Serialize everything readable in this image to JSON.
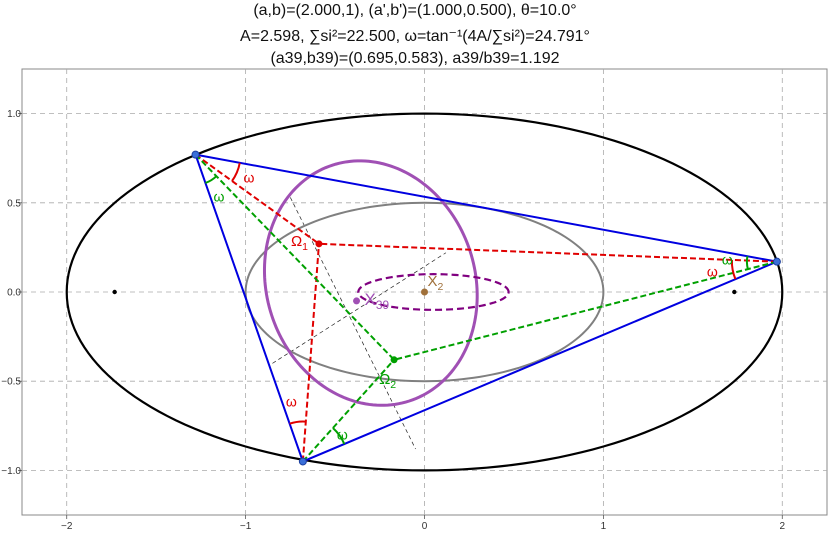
{
  "header": {
    "line1": "(a,b)=(2.000,1), (a',b')=(1.000,0.500), θ=10.0°",
    "line2": "A=2.598, ∑si²=22.500, ω=tan⁻¹(4A/∑si²)=24.791°",
    "line3": "(a39,b39)=(0.695,0.583), a39/b39=1.192"
  },
  "chart_data": {
    "type": "diagram",
    "xlim": [
      -2.25,
      2.25
    ],
    "ylim": [
      -1.25,
      1.25
    ],
    "grid": true,
    "x_ticks": [
      -2,
      -1,
      0,
      1,
      2
    ],
    "y_ticks": [
      -1.0,
      -0.5,
      0.0,
      0.5,
      1.0
    ],
    "x_tick_labels": [
      "−2",
      "−1",
      "0",
      "1",
      "2"
    ],
    "y_tick_labels": [
      "−1.0",
      "−0.5",
      "0.0",
      "0.5",
      "1.0"
    ],
    "outer_ellipse": {
      "a": 2.0,
      "b": 1.0,
      "color": "#000000"
    },
    "inner_ellipse": {
      "a": 1.0,
      "b": 0.5,
      "color": "#808080"
    },
    "x39_ellipse": {
      "cx": -0.3,
      "cy": 0.05,
      "a": 0.695,
      "b": 0.583,
      "rotation_deg": -72,
      "color": "#a050b4"
    },
    "x2_dashed_ellipse": {
      "cx": 0.05,
      "cy": 0.0,
      "a": 0.42,
      "b": 0.1,
      "color": "#800080"
    },
    "foci": [
      [
        -1.732,
        0
      ],
      [
        1.732,
        0
      ]
    ],
    "triangle": [
      [
        -1.28,
        0.77
      ],
      [
        1.97,
        0.17
      ],
      [
        -0.68,
        -0.95
      ]
    ],
    "triangle_color": "#0000e0",
    "omega1": {
      "point": [
        -0.59,
        0.27
      ],
      "label": "Ω1",
      "color": "#e00000"
    },
    "omega2": {
      "point": [
        -0.17,
        -0.38
      ],
      "label": "Ω2",
      "color": "#00a000"
    },
    "x2": {
      "point": [
        0.0,
        0.0
      ],
      "label": "X2",
      "color": "#a0703a"
    },
    "x39": {
      "point": [
        -0.38,
        -0.05
      ],
      "label": "X39",
      "color": "#a050b4"
    },
    "omega_label": "ω"
  }
}
